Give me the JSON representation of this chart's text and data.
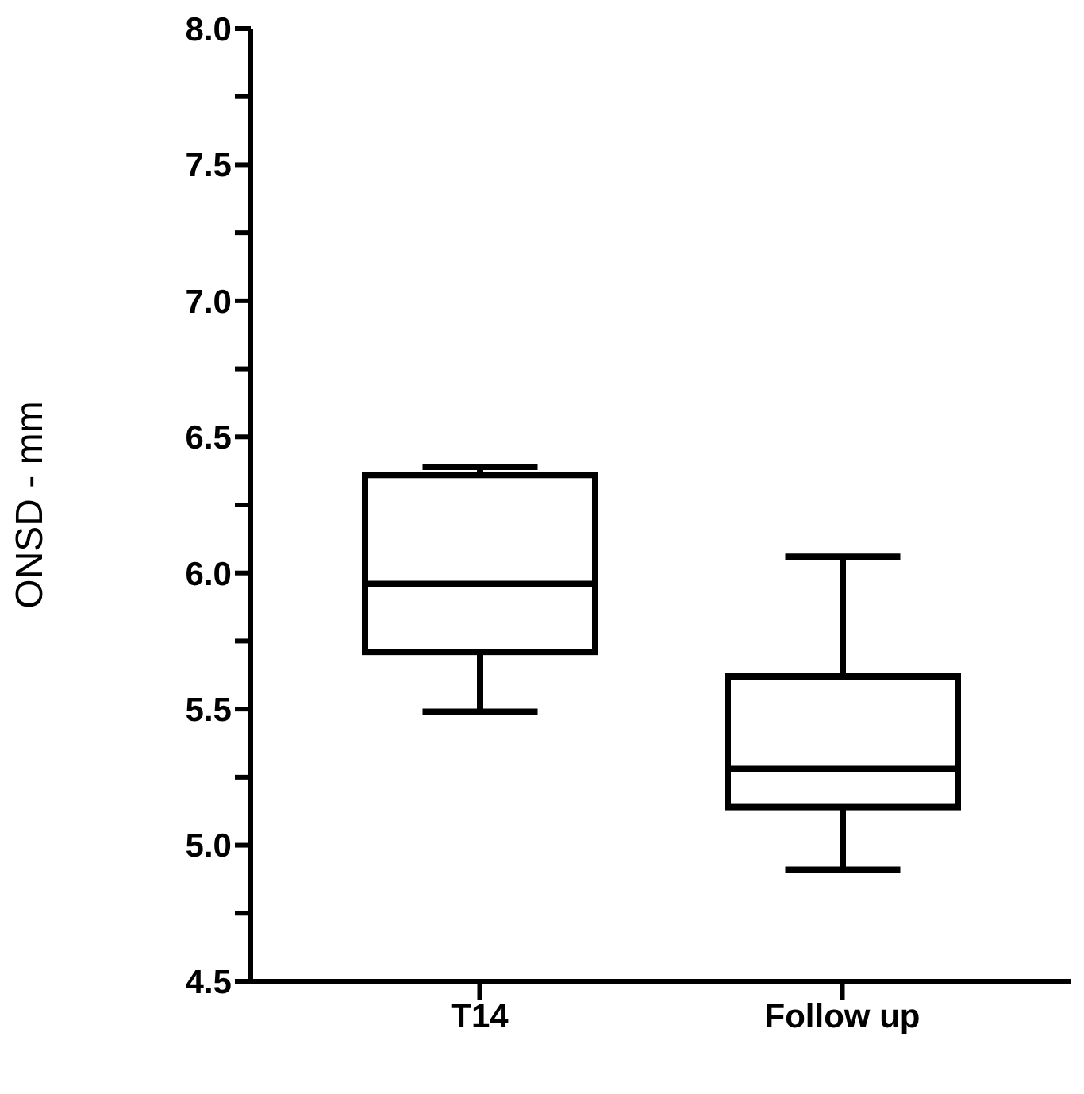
{
  "chart_data": {
    "type": "box",
    "ylabel": "ONSD - mm",
    "categories": [
      "T14",
      "Follow up"
    ],
    "color": "#000000",
    "ylim": [
      4.5,
      8.0
    ],
    "yticks": [
      {
        "value": 4.5,
        "label": "4.5"
      },
      {
        "value": 4.75,
        "label": null
      },
      {
        "value": 5.0,
        "label": "5.0"
      },
      {
        "value": 5.25,
        "label": null
      },
      {
        "value": 5.5,
        "label": "5.5"
      },
      {
        "value": 5.75,
        "label": null
      },
      {
        "value": 6.0,
        "label": "6.0"
      },
      {
        "value": 6.25,
        "label": null
      },
      {
        "value": 6.5,
        "label": "6.5"
      },
      {
        "value": 6.75,
        "label": null
      },
      {
        "value": 7.0,
        "label": "7.0"
      },
      {
        "value": 7.25,
        "label": null
      },
      {
        "value": 7.5,
        "label": "7.5"
      },
      {
        "value": 7.75,
        "label": null
      },
      {
        "value": 8.0,
        "label": "8.0"
      }
    ],
    "boxes": [
      {
        "low": 5.49,
        "q1": 5.71,
        "median": 5.96,
        "q3": 6.36,
        "high": 6.39
      },
      {
        "low": 4.91,
        "q1": 5.14,
        "median": 5.28,
        "q3": 5.62,
        "high": 6.06
      }
    ]
  }
}
